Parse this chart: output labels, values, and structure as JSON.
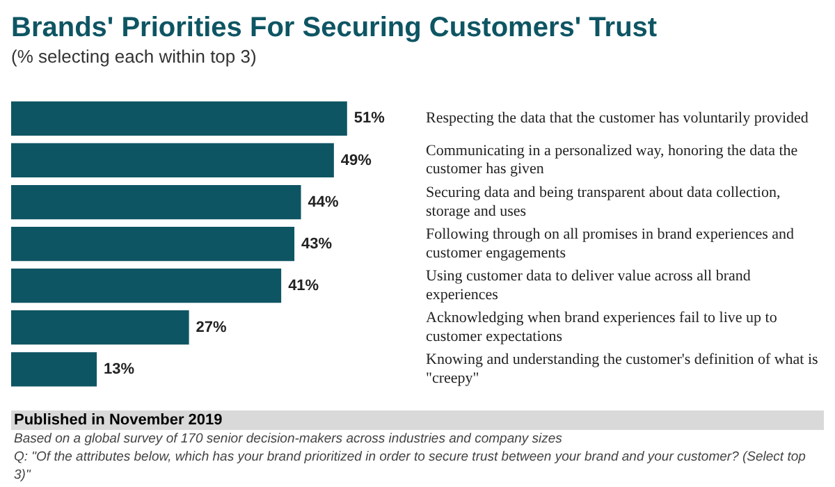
{
  "chart_data": {
    "type": "bar",
    "orientation": "horizontal",
    "title": "Brands' Priorities For Securing Customers' Trust",
    "subtitle": "(% selecting each within top 3)",
    "categories": [
      "Respecting the data that the customer has voluntarily provided",
      "Communicating in a personalized way, honoring the data the customer has given",
      "Securing data and being transparent about data collection, storage and uses",
      "Following through on all promises in brand experiences and customer engagements",
      "Using customer data to deliver value across all brand experiences",
      "Acknowledging when brand experiences fail to live up to customer expectations",
      "Knowing and understanding the customer's definition of what is \"creepy\""
    ],
    "values": [
      51,
      49,
      44,
      43,
      41,
      27,
      13
    ],
    "value_labels": [
      "51%",
      "49%",
      "44%",
      "43%",
      "41%",
      "27%",
      "13%"
    ],
    "color": "#0e5563",
    "legend": false,
    "annotations": [
      "Published in November 2019",
      "Based on a global survey of 170 senior decision-makers across industries and company sizes",
      "Q: \"Of the attributes below, which has your brand prioritized in order to secure trust between your brand and your customer? (Select top 3)\""
    ]
  }
}
